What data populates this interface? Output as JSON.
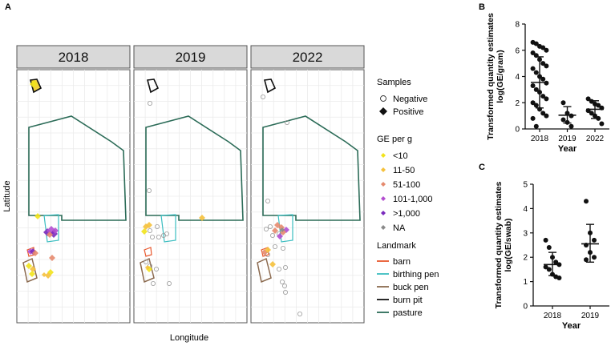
{
  "panel_labels": {
    "a": "A",
    "b": "B",
    "c": "C"
  },
  "map": {
    "years": [
      "2018",
      "2019",
      "2022"
    ],
    "xlabel": "Longitude",
    "ylabel": "Latitude",
    "legend": {
      "samples_title": "Samples",
      "samples": [
        {
          "label": "Negative",
          "shape": "open-circle"
        },
        {
          "label": "Positive",
          "shape": "filled-diamond"
        }
      ],
      "ge_title": "GE per g",
      "ge_classes": [
        {
          "label": "<10",
          "color": "#f2e31c"
        },
        {
          "label": "11-50",
          "color": "#f5c13c"
        },
        {
          "label": "51-100",
          "color": "#e58a6e"
        },
        {
          "label": "101-1,000",
          "color": "#b34fd0"
        },
        {
          "label": ">1,000",
          "color": "#7a2bbd"
        },
        {
          "label": "NA",
          "color": "#8a8a8a"
        }
      ],
      "landmark_title": "Landmark",
      "landmarks": [
        {
          "label": "barn",
          "color": "#e8582e"
        },
        {
          "label": "birthing pen",
          "color": "#3bbdc0"
        },
        {
          "label": "buck pen",
          "color": "#8b6a4f"
        },
        {
          "label": "burn pit",
          "color": "#111111"
        },
        {
          "label": "pasture",
          "color": "#2b6b57"
        }
      ]
    },
    "panel_bg": "#d9d9d9",
    "grid_color": "#ebebeb"
  },
  "chart_data": [
    {
      "panel": "B",
      "type": "scatter",
      "ylabel_line1": "Transformed quantity estimates",
      "ylabel_line2": "log(GE/gram)",
      "xlabel": "Year",
      "categories": [
        "2018",
        "2019",
        "2022"
      ],
      "ylim": [
        0,
        8
      ],
      "yticks": [
        0,
        2,
        4,
        6,
        8
      ],
      "series": [
        {
          "category": "2018",
          "mean": 3.55,
          "sd_low": 1.6,
          "sd_high": 5.5,
          "values": [
            6.6,
            6.5,
            6.3,
            6.2,
            6.0,
            5.8,
            5.6,
            5.3,
            5.0,
            4.8,
            4.6,
            4.3,
            4.0,
            3.8,
            3.5,
            3.3,
            3.0,
            2.8,
            2.5,
            2.3,
            2.0,
            1.8,
            1.5,
            1.2,
            1.0,
            0.8,
            0.2
          ]
        },
        {
          "category": "2019",
          "mean": 1.05,
          "sd_low": 0.45,
          "sd_high": 1.7,
          "values": [
            2.0,
            1.2,
            1.0,
            0.7,
            0.5,
            0.2
          ]
        },
        {
          "category": "2022",
          "mean": 1.5,
          "sd_low": 0.8,
          "sd_high": 2.15,
          "values": [
            2.3,
            2.1,
            1.9,
            1.8,
            1.6,
            1.4,
            1.2,
            1.0,
            0.8,
            0.4
          ]
        }
      ]
    },
    {
      "panel": "C",
      "type": "scatter",
      "ylabel_line1": "Transformed quantity estimates",
      "ylabel_line2": "log(GE/swab)",
      "xlabel": "Year",
      "categories": [
        "2018",
        "2019"
      ],
      "ylim": [
        0,
        5
      ],
      "yticks": [
        0,
        1,
        2,
        3,
        4,
        5
      ],
      "series": [
        {
          "category": "2018",
          "mean": 1.7,
          "sd_low": 1.25,
          "sd_high": 2.2,
          "values": [
            2.7,
            2.4,
            2.0,
            1.8,
            1.7,
            1.6,
            1.5,
            1.3,
            1.2,
            1.15
          ]
        },
        {
          "category": "2019",
          "mean": 2.55,
          "sd_low": 1.8,
          "sd_high": 3.35,
          "values": [
            4.3,
            3.0,
            2.7,
            2.5,
            2.2,
            2.0,
            1.9
          ]
        }
      ]
    }
  ]
}
